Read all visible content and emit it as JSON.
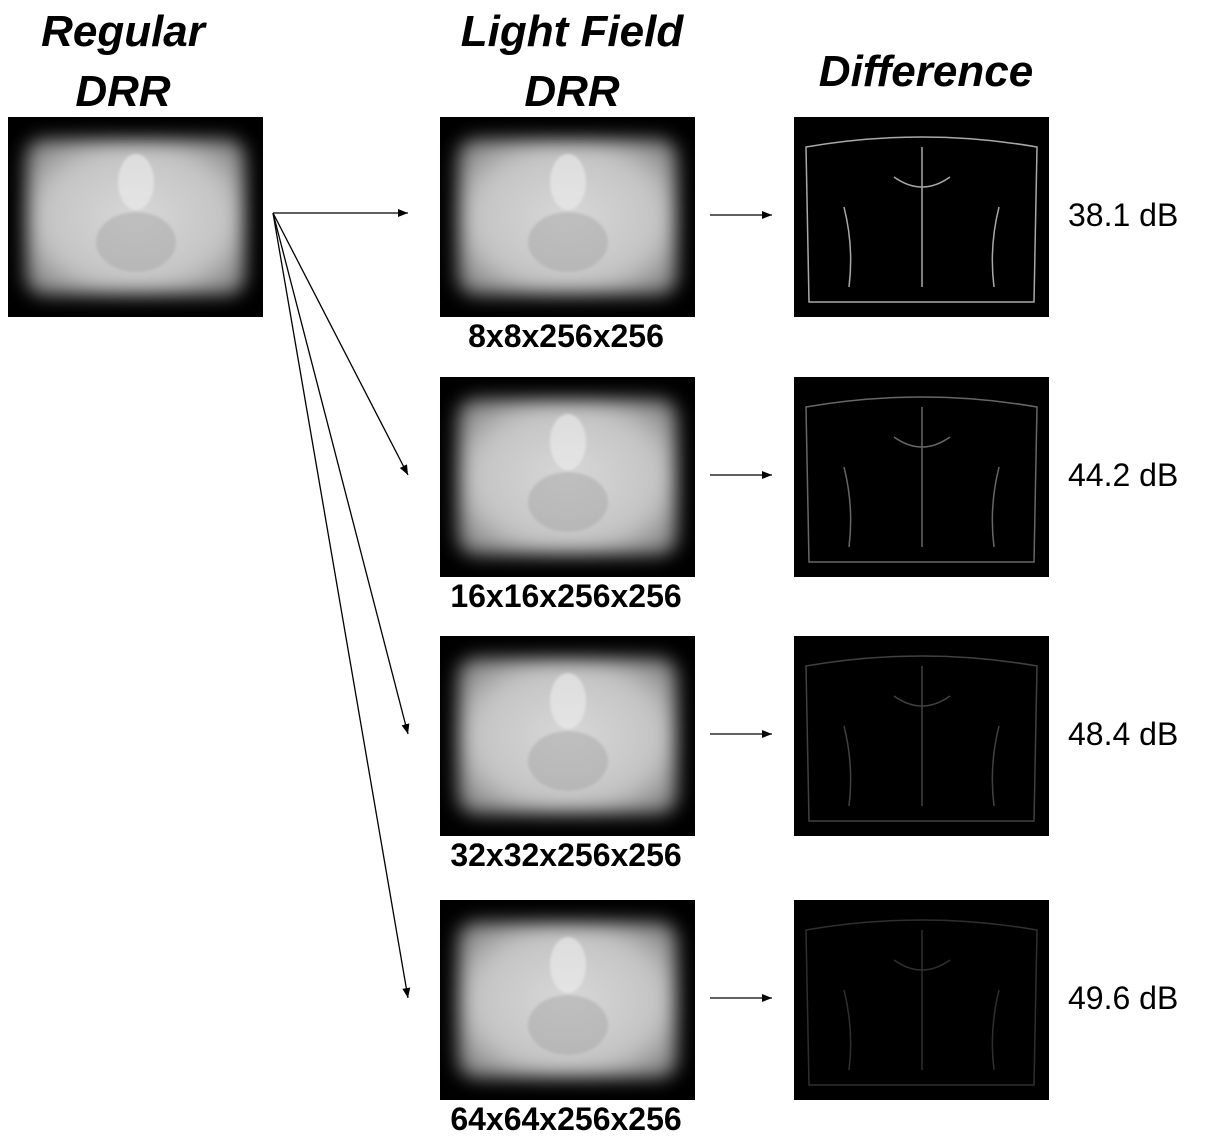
{
  "headers": {
    "regular": [
      "Regular",
      "DRR"
    ],
    "light_field": [
      "Light Field",
      "DRR"
    ],
    "difference": "Difference"
  },
  "rows": [
    {
      "resolution": "8x8x256x256",
      "psnr": "38.1 dB"
    },
    {
      "resolution": "16x16x256x256",
      "psnr": "44.2 dB"
    },
    {
      "resolution": "32x32x256x256",
      "psnr": "48.4 dB"
    },
    {
      "resolution": "64x64x256x256",
      "psnr": "49.6 dB"
    }
  ]
}
